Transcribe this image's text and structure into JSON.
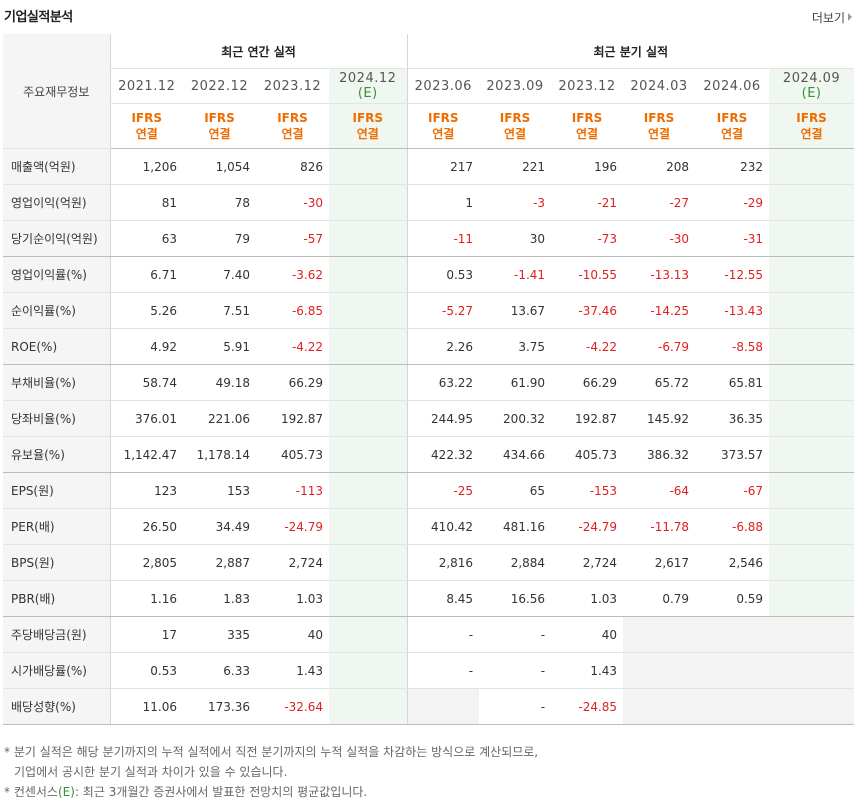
{
  "section_title": "기업실적분석",
  "more_label": "더보기",
  "table": {
    "row_header_label": "주요재무정보",
    "annual_group_label": "최근 연간 실적",
    "quarterly_group_label": "최근 분기 실적",
    "annual_periods": [
      "2021.12",
      "2022.12",
      "2023.12",
      "2024.12"
    ],
    "quarter_periods": [
      "2023.06",
      "2023.09",
      "2023.12",
      "2024.03",
      "2024.06",
      "2024.09"
    ],
    "estimate_mark": "(E)",
    "ifrs_line1": "IFRS",
    "ifrs_line2": "연결",
    "rows": [
      {
        "label": "매출액(억원)",
        "annual": [
          "1,206",
          "1,054",
          "826",
          ""
        ],
        "quarter": [
          "217",
          "221",
          "196",
          "208",
          "232",
          ""
        ]
      },
      {
        "label": "영업이익(억원)",
        "annual": [
          "81",
          "78",
          "-30",
          ""
        ],
        "quarter": [
          "1",
          "-3",
          "-21",
          "-27",
          "-29",
          ""
        ]
      },
      {
        "label": "당기순이익(억원)",
        "annual": [
          "63",
          "79",
          "-57",
          ""
        ],
        "quarter": [
          "-11",
          "30",
          "-73",
          "-30",
          "-31",
          ""
        ]
      },
      {
        "label": "영업이익률(%)",
        "annual": [
          "6.71",
          "7.40",
          "-3.62",
          ""
        ],
        "quarter": [
          "0.53",
          "-1.41",
          "-10.55",
          "-13.13",
          "-12.55",
          ""
        ]
      },
      {
        "label": "순이익률(%)",
        "annual": [
          "5.26",
          "7.51",
          "-6.85",
          ""
        ],
        "quarter": [
          "-5.27",
          "13.67",
          "-37.46",
          "-14.25",
          "-13.43",
          ""
        ]
      },
      {
        "label": "ROE(%)",
        "annual": [
          "4.92",
          "5.91",
          "-4.22",
          ""
        ],
        "quarter": [
          "2.26",
          "3.75",
          "-4.22",
          "-6.79",
          "-8.58",
          ""
        ]
      },
      {
        "label": "부채비율(%)",
        "annual": [
          "58.74",
          "49.18",
          "66.29",
          ""
        ],
        "quarter": [
          "63.22",
          "61.90",
          "66.29",
          "65.72",
          "65.81",
          ""
        ]
      },
      {
        "label": "당좌비율(%)",
        "annual": [
          "376.01",
          "221.06",
          "192.87",
          ""
        ],
        "quarter": [
          "244.95",
          "200.32",
          "192.87",
          "145.92",
          "36.35",
          ""
        ]
      },
      {
        "label": "유보율(%)",
        "annual": [
          "1,142.47",
          "1,178.14",
          "405.73",
          ""
        ],
        "quarter": [
          "422.32",
          "434.66",
          "405.73",
          "386.32",
          "373.57",
          ""
        ]
      },
      {
        "label": "EPS(원)",
        "annual": [
          "123",
          "153",
          "-113",
          ""
        ],
        "quarter": [
          "-25",
          "65",
          "-153",
          "-64",
          "-67",
          ""
        ]
      },
      {
        "label": "PER(배)",
        "annual": [
          "26.50",
          "34.49",
          "-24.79",
          ""
        ],
        "quarter": [
          "410.42",
          "481.16",
          "-24.79",
          "-11.78",
          "-6.88",
          ""
        ]
      },
      {
        "label": "BPS(원)",
        "annual": [
          "2,805",
          "2,887",
          "2,724",
          ""
        ],
        "quarter": [
          "2,816",
          "2,884",
          "2,724",
          "2,617",
          "2,546",
          ""
        ]
      },
      {
        "label": "PBR(배)",
        "annual": [
          "1.16",
          "1.83",
          "1.03",
          ""
        ],
        "quarter": [
          "8.45",
          "16.56",
          "1.03",
          "0.79",
          "0.59",
          ""
        ]
      },
      {
        "label": "주당배당금(원)",
        "annual": [
          "17",
          "335",
          "40",
          ""
        ],
        "quarter": [
          "-",
          "-",
          "40",
          "",
          "",
          ""
        ]
      },
      {
        "label": "시가배당률(%)",
        "annual": [
          "0.53",
          "6.33",
          "1.43",
          ""
        ],
        "quarter": [
          "-",
          "-",
          "1.43",
          "",
          "",
          ""
        ]
      },
      {
        "label": "배당성향(%)",
        "annual": [
          "11.06",
          "173.36",
          "-32.64",
          ""
        ],
        "quarter": [
          "",
          "-",
          "-24.85",
          "",
          "",
          ""
        ]
      }
    ]
  },
  "notes": {
    "line1": "* 분기 실적은 해당 분기까지의 누적 실적에서 직전 분기까지의 누적 실적을 차감하는 방식으로 계산되므로,",
    "line2": "기업에서 공시한 분기 실적과 차이가 있을 수 있습니다.",
    "line3_prefix": "* 컨센서스",
    "line3_mark": "(E)",
    "line3_suffix": ": 최근 3개월간 증권사에서 발표한 전망치의 평균값입니다."
  },
  "colors": {
    "negative": "#e02020",
    "ifrs": "#ef6c00",
    "estimate": "#3a8f3a",
    "estimate_bg": "#f0f7f0",
    "label_bg": "#f5f5f5"
  }
}
